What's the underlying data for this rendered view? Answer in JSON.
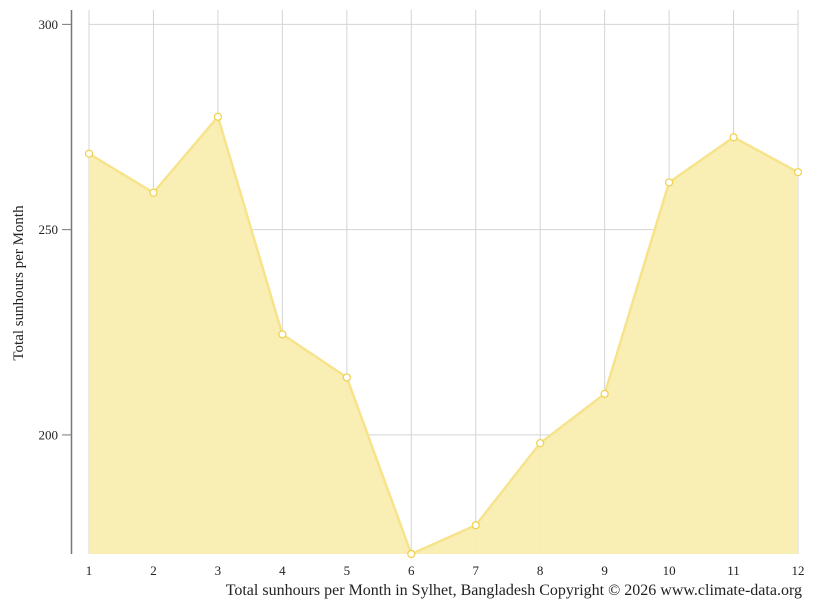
{
  "chart_data": {
    "type": "area",
    "x": [
      1,
      2,
      3,
      4,
      5,
      6,
      7,
      8,
      9,
      10,
      11,
      12
    ],
    "values": [
      268.5,
      259,
      277.5,
      224.5,
      214,
      171,
      178,
      198,
      210,
      261.5,
      272.5,
      264
    ],
    "xlabel": "",
    "ylabel": "Total sunhours per Month",
    "ylim": [
      171,
      303.5
    ],
    "yticks": [
      200,
      250,
      300
    ],
    "grid": true,
    "fill_color": "#f9eeb0",
    "line_color": "#f7e38c",
    "marker_fill": "#ffffff",
    "marker_stroke": "#f0d04a",
    "caption": "Total sunhours per Month in Sylhet, Bangladesh Copyright © 2026 www.climate-data.org"
  }
}
